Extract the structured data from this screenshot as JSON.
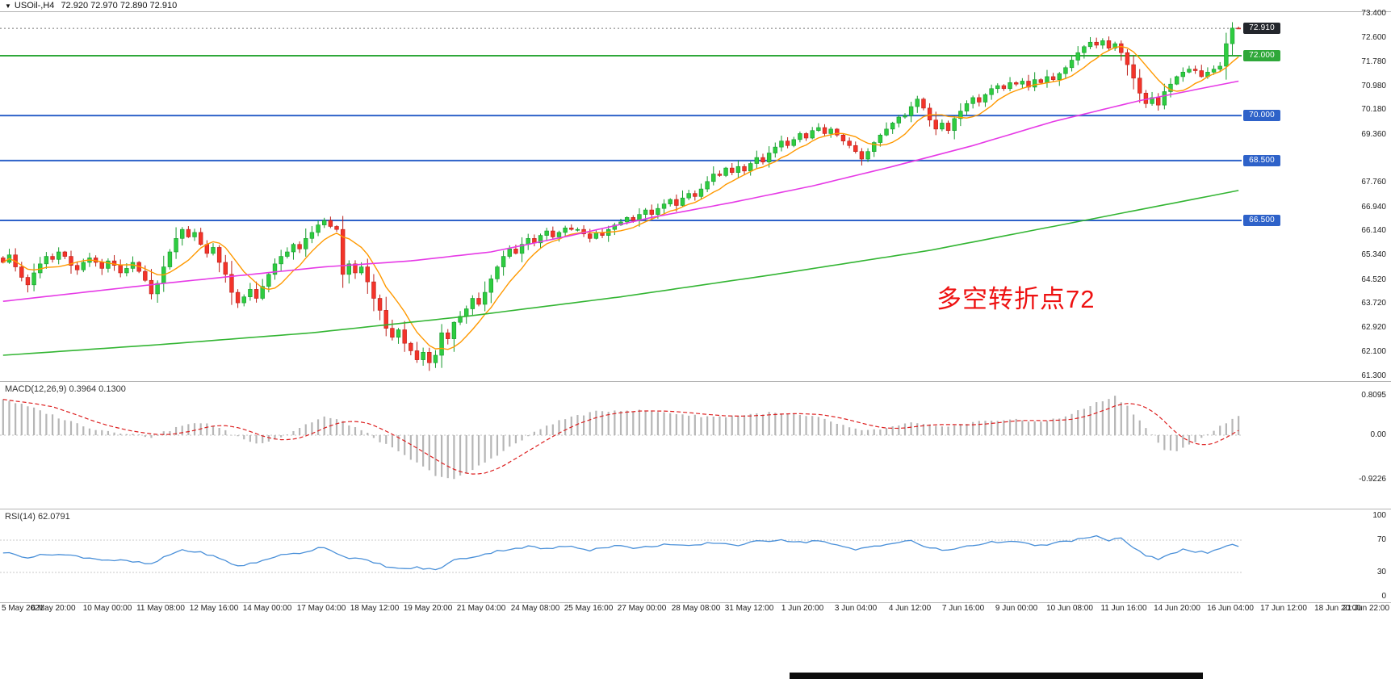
{
  "header": {
    "dropdown_icon": "▼",
    "symbol": "USOil-,H4",
    "ohlc": "72.920 72.970 72.890 72.910"
  },
  "price_scale": {
    "ticks": [
      73.4,
      72.6,
      71.78,
      70.98,
      70.18,
      69.36,
      67.76,
      66.94,
      66.14,
      65.34,
      64.52,
      63.72,
      62.92,
      62.1,
      61.3
    ],
    "badges": [
      {
        "value": 72.91,
        "type": "current-price",
        "bg": "#23262c",
        "fg": "#ffffff"
      },
      {
        "value": 72.0,
        "type": "level",
        "bg": "#2fa83a",
        "fg": "#ffffff"
      },
      {
        "value": 70.0,
        "type": "level",
        "bg": "#2e62c9",
        "fg": "#ffffff"
      },
      {
        "value": 68.5,
        "type": "level",
        "bg": "#2e62c9",
        "fg": "#ffffff"
      },
      {
        "value": 66.5,
        "type": "level",
        "bg": "#2e62c9",
        "fg": "#ffffff"
      }
    ]
  },
  "levels": [
    {
      "price": 72.0,
      "color": "#2fa83a"
    },
    {
      "price": 70.0,
      "color": "#2e62c9"
    },
    {
      "price": 68.5,
      "color": "#2e62c9"
    },
    {
      "price": 66.5,
      "color": "#2e62c9"
    }
  ],
  "chart_data": {
    "type": "candlestick",
    "symbol": "USOil-",
    "timeframe": "H4",
    "current_ohlc": {
      "open": 72.92,
      "high": 72.97,
      "low": 72.89,
      "close": 72.91
    },
    "y_axis": {
      "min": 61.3,
      "max": 73.4,
      "tick_step": 0.8
    },
    "x_labels": [
      "5 May 2021",
      "6 May 20:00",
      "10 May 00:00",
      "11 May 08:00",
      "12 May 16:00",
      "14 May 00:00",
      "17 May 04:00",
      "18 May 12:00",
      "19 May 20:00",
      "21 May 04:00",
      "24 May 08:00",
      "25 May 16:00",
      "27 May 00:00",
      "28 May 08:00",
      "31 May 12:00",
      "1 Jun 20:00",
      "3 Jun 04:00",
      "4 Jun 12:00",
      "7 Jun 16:00",
      "9 Jun 00:00",
      "10 Jun 08:00",
      "11 Jun 16:00",
      "14 Jun 20:00",
      "16 Jun 04:00",
      "17 Jun 12:00",
      "18 Jun 20:00",
      "21 Jun 22:00"
    ],
    "closes": [
      65.1,
      65.35,
      64.95,
      64.6,
      64.35,
      64.75,
      65.05,
      65.3,
      65.2,
      65.45,
      65.3,
      65.0,
      64.85,
      65.1,
      65.25,
      65.1,
      64.9,
      65.15,
      65.0,
      64.75,
      64.9,
      65.1,
      64.8,
      64.5,
      64.05,
      64.4,
      64.95,
      65.45,
      65.9,
      66.2,
      65.95,
      66.1,
      65.7,
      65.4,
      65.6,
      65.1,
      64.7,
      64.1,
      63.75,
      63.95,
      64.2,
      63.9,
      64.3,
      64.7,
      65.05,
      65.3,
      65.45,
      65.7,
      65.55,
      65.9,
      66.1,
      66.35,
      66.5,
      66.3,
      66.2,
      64.7,
      65.05,
      64.75,
      64.95,
      64.45,
      63.9,
      63.5,
      62.9,
      62.6,
      62.85,
      62.4,
      62.15,
      61.85,
      62.1,
      61.75,
      62.0,
      62.75,
      62.55,
      63.1,
      63.3,
      63.55,
      63.9,
      63.7,
      64.1,
      64.55,
      64.95,
      65.3,
      65.55,
      65.4,
      65.7,
      65.9,
      65.75,
      66.0,
      66.15,
      65.95,
      66.1,
      66.25,
      66.2,
      66.2,
      66.05,
      65.9,
      66.1,
      66.0,
      66.2,
      66.35,
      66.45,
      66.6,
      66.5,
      66.7,
      66.85,
      66.7,
      66.9,
      67.05,
      67.2,
      67.0,
      67.25,
      67.4,
      67.3,
      67.55,
      67.8,
      68.05,
      68.0,
      68.25,
      68.1,
      68.3,
      68.15,
      68.4,
      68.6,
      68.45,
      68.75,
      68.95,
      69.15,
      69.0,
      69.2,
      69.4,
      69.25,
      69.5,
      69.6,
      69.4,
      69.55,
      69.35,
      69.15,
      69.0,
      68.8,
      68.55,
      68.8,
      69.1,
      69.35,
      69.55,
      69.75,
      69.95,
      70.0,
      70.3,
      70.55,
      70.25,
      69.85,
      69.55,
      69.75,
      69.5,
      69.9,
      70.15,
      70.4,
      70.6,
      70.45,
      70.7,
      70.9,
      71.0,
      70.9,
      71.1,
      71.05,
      71.15,
      70.95,
      71.2,
      71.1,
      71.3,
      71.2,
      71.4,
      71.6,
      71.85,
      72.1,
      72.3,
      72.45,
      72.35,
      72.5,
      72.25,
      72.4,
      72.1,
      71.7,
      71.25,
      70.75,
      70.4,
      70.6,
      70.35,
      70.8,
      71.05,
      71.3,
      71.45,
      71.55,
      71.5,
      71.3,
      71.45,
      71.55,
      71.65,
      72.4,
      72.92,
      72.91
    ],
    "moving_averages": {
      "fast": {
        "color": "#ff9900",
        "period": 8
      },
      "mid": {
        "color": "#e63ae6",
        "anchors": [
          [
            0,
            63.8
          ],
          [
            26,
            64.4
          ],
          [
            52,
            64.95
          ],
          [
            66,
            65.15
          ],
          [
            79,
            65.45
          ],
          [
            92,
            66.0
          ],
          [
            105,
            66.6
          ],
          [
            118,
            67.1
          ],
          [
            131,
            67.65
          ],
          [
            144,
            68.3
          ],
          [
            157,
            69.0
          ],
          [
            170,
            69.8
          ],
          [
            184,
            70.5
          ],
          [
            200,
            71.15
          ]
        ]
      },
      "slow": {
        "color": "#33b533",
        "anchors": [
          [
            0,
            62.0
          ],
          [
            25,
            62.35
          ],
          [
            50,
            62.75
          ],
          [
            75,
            63.3
          ],
          [
            100,
            63.95
          ],
          [
            125,
            64.7
          ],
          [
            150,
            65.5
          ],
          [
            175,
            66.5
          ],
          [
            200,
            67.5
          ]
        ]
      }
    },
    "annotation": {
      "text": "多空转折点72",
      "color": "#ee1111"
    },
    "indicators": {
      "macd": {
        "label": "MACD(12,26,9) 0.3964 0.1300",
        "name": "MACD",
        "params": [
          12,
          26,
          9
        ],
        "main": 0.3964,
        "signal": 0.13,
        "y_ticks": [
          {
            "v": 0.8095,
            "t": "0.8095"
          },
          {
            "v": 0,
            "t": "0.00"
          },
          {
            "v": -0.9226,
            "t": "-0.9226"
          }
        ],
        "bar_color": "#b6b6b6",
        "signal_color": "#dd2020",
        "histogram_anchors": [
          [
            0,
            0.75
          ],
          [
            5,
            0.55
          ],
          [
            10,
            0.32
          ],
          [
            15,
            0.12
          ],
          [
            20,
            0.04
          ],
          [
            24,
            -0.04
          ],
          [
            29,
            0.2
          ],
          [
            33,
            0.26
          ],
          [
            37,
            0.02
          ],
          [
            41,
            -0.18
          ],
          [
            45,
            -0.04
          ],
          [
            49,
            0.22
          ],
          [
            52,
            0.38
          ],
          [
            55,
            0.28
          ],
          [
            58,
            0.1
          ],
          [
            62,
            -0.2
          ],
          [
            66,
            -0.5
          ],
          [
            70,
            -0.82
          ],
          [
            73,
            -0.92
          ],
          [
            76,
            -0.72
          ],
          [
            80,
            -0.4
          ],
          [
            84,
            -0.1
          ],
          [
            88,
            0.2
          ],
          [
            92,
            0.38
          ],
          [
            96,
            0.48
          ],
          [
            100,
            0.52
          ],
          [
            104,
            0.5
          ],
          [
            108,
            0.46
          ],
          [
            112,
            0.4
          ],
          [
            116,
            0.38
          ],
          [
            120,
            0.42
          ],
          [
            124,
            0.46
          ],
          [
            128,
            0.42
          ],
          [
            132,
            0.36
          ],
          [
            136,
            0.2
          ],
          [
            139,
            0.08
          ],
          [
            143,
            0.14
          ],
          [
            147,
            0.25
          ],
          [
            151,
            0.18
          ],
          [
            155,
            0.22
          ],
          [
            159,
            0.3
          ],
          [
            163,
            0.32
          ],
          [
            167,
            0.28
          ],
          [
            171,
            0.34
          ],
          [
            175,
            0.55
          ],
          [
            178,
            0.72
          ],
          [
            180,
            0.8
          ],
          [
            182,
            0.6
          ],
          [
            185,
            0.15
          ],
          [
            188,
            -0.3
          ],
          [
            190,
            -0.35
          ],
          [
            192,
            -0.2
          ],
          [
            194,
            -0.05
          ],
          [
            196,
            0.1
          ],
          [
            198,
            0.25
          ],
          [
            200,
            0.3964
          ]
        ]
      },
      "rsi": {
        "label": "RSI(14) 62.0791",
        "name": "RSI",
        "period": 14,
        "value": 62.0791,
        "y_ticks": [
          100,
          70,
          30,
          0
        ],
        "levels": [
          70,
          30
        ],
        "line_color": "#4a90d9",
        "anchors": [
          [
            0,
            55
          ],
          [
            4,
            49
          ],
          [
            8,
            53
          ],
          [
            12,
            50
          ],
          [
            16,
            46
          ],
          [
            20,
            44
          ],
          [
            24,
            40
          ],
          [
            27,
            52
          ],
          [
            29,
            58
          ],
          [
            33,
            53
          ],
          [
            36,
            44
          ],
          [
            38,
            38
          ],
          [
            41,
            42
          ],
          [
            44,
            50
          ],
          [
            48,
            54
          ],
          [
            52,
            62
          ],
          [
            55,
            50
          ],
          [
            58,
            46
          ],
          [
            61,
            40
          ],
          [
            64,
            34
          ],
          [
            67,
            36
          ],
          [
            70,
            33
          ],
          [
            73,
            45
          ],
          [
            77,
            51
          ],
          [
            81,
            58
          ],
          [
            85,
            62
          ],
          [
            88,
            59
          ],
          [
            92,
            63
          ],
          [
            95,
            58
          ],
          [
            99,
            63
          ],
          [
            103,
            60
          ],
          [
            107,
            65
          ],
          [
            111,
            62
          ],
          [
            115,
            67
          ],
          [
            119,
            64
          ],
          [
            122,
            68
          ],
          [
            126,
            71
          ],
          [
            129,
            67
          ],
          [
            132,
            70
          ],
          [
            135,
            63
          ],
          [
            138,
            58
          ],
          [
            141,
            63
          ],
          [
            144,
            66
          ],
          [
            147,
            69
          ],
          [
            150,
            60
          ],
          [
            153,
            57
          ],
          [
            156,
            63
          ],
          [
            159,
            66
          ],
          [
            162,
            69
          ],
          [
            165,
            66
          ],
          [
            168,
            63
          ],
          [
            171,
            67
          ],
          [
            174,
            71
          ],
          [
            177,
            74
          ],
          [
            179,
            70
          ],
          [
            181,
            73
          ],
          [
            183,
            60
          ],
          [
            185,
            50
          ],
          [
            187,
            47
          ],
          [
            189,
            54
          ],
          [
            191,
            58
          ],
          [
            193,
            56
          ],
          [
            195,
            54
          ],
          [
            197,
            58
          ],
          [
            199,
            66
          ],
          [
            200,
            62.08
          ]
        ]
      }
    }
  }
}
